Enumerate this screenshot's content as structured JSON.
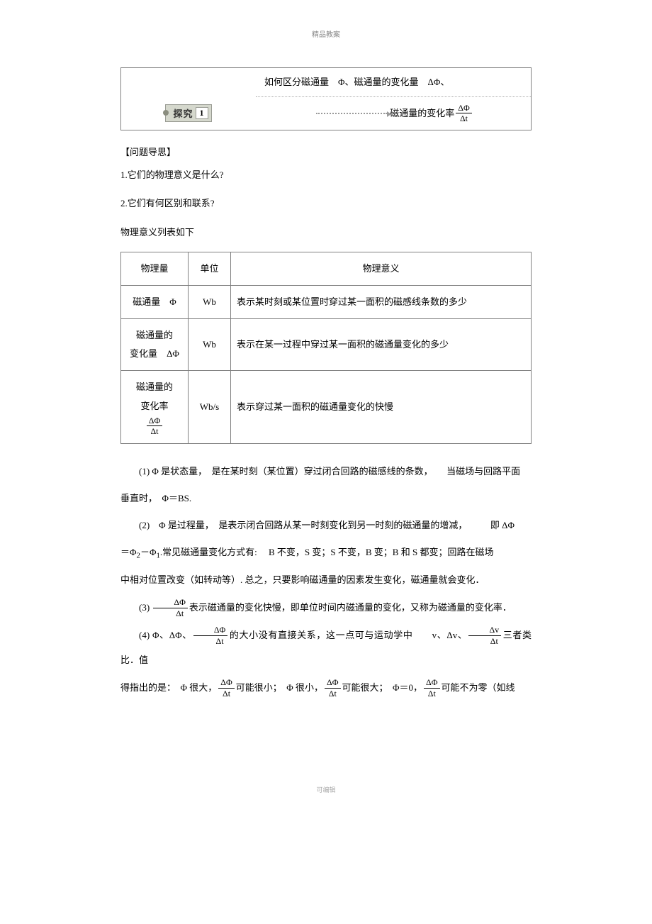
{
  "header": {
    "text": "精品教案"
  },
  "footer": {
    "text": "可编辑"
  },
  "explore": {
    "badge_label": "探究",
    "badge_num": "1",
    "top_text_prefix": "如何区分磁通量　",
    "top_text_phi": "Φ",
    "top_text_mid": "、磁通量的变化量　",
    "top_text_dphi": "ΔΦ",
    "top_text_suffix": "、",
    "bottom_label": "磁通量的变化率",
    "frac_num": "ΔΦ",
    "frac_den": "Δt"
  },
  "qa": {
    "heading": "【问题导思】",
    "q1": "1.它们的物理意义是什么?",
    "q2": "2.它们有何区别和联系?",
    "lead": "物理意义列表如下"
  },
  "table": {
    "headers": {
      "qty": "物理量",
      "unit": "单位",
      "meaning": "物理意义"
    },
    "rows": [
      {
        "qty_pre": "磁通量　",
        "qty_sym": "Φ",
        "unit": "Wb",
        "meaning": "表示某时刻或某位置时穿过某一面积的磁感线条数的多少"
      },
      {
        "qty_line1": "磁通量的",
        "qty_line2_pre": "变化量　",
        "qty_line2_sym": "ΔΦ",
        "unit": "Wb",
        "meaning": "表示在某一过程中穿过某一面积的磁通量变化的多少"
      },
      {
        "qty_line1": "磁通量的",
        "qty_line2_pre": "变化率　",
        "frac_num": "ΔΦ",
        "frac_den": "Δt",
        "unit": "Wb/s",
        "meaning": "表示穿过某一面积的磁通量变化的快慢"
      }
    ]
  },
  "body": {
    "p1_a": "(1) Φ 是状态量，　是在某时刻（某位置）穿过闭合回路的磁感线的条数，　　当磁场与回路平面",
    "p1_b": "垂直时，　Φ＝BS.",
    "p2_a": "(2)　Φ 是过程量，　是表示闭合回路从某一时刻变化到另一时刻的磁通量的增减，　　　即 ΔΦ",
    "p2_b": "＝Φ",
    "p2_sub2": "2",
    "p2_c": "－Φ",
    "p2_sub1": "1",
    "p2_d": ".常见磁通量变化方式有:　 B 不变，S 变；S 不变，B 变；B 和 S 都变；回路在磁场",
    "p2_e": "中相对位置改变（如转动等）. 总之，只要影响磁通量的因素发生变化，磁通量就会变化．",
    "p3_a": "(3) ",
    "p3_frac_num": "ΔΦ",
    "p3_frac_den": "Δt",
    "p3_b": "表示磁通量的变化快慢，即单位时间内磁通量的变化，又称为磁通量的变化率．",
    "p4_a": "(4) Φ、ΔΦ、",
    "p4_frac1_num": "ΔΦ",
    "p4_frac1_den": "Δt",
    "p4_b": "的大小没有直接关系，这一点可与运动学中　　v、Δv、",
    "p4_frac2_num": "Δv",
    "p4_frac2_den": "Δt",
    "p4_c": "三者类比．值",
    "p5_a": "得指出的是：　Φ 很大，",
    "p5_frac1_num": "ΔΦ",
    "p5_frac1_den": "Δt",
    "p5_b": "可能很小；　Φ 很小，",
    "p5_frac2_num": "ΔΦ",
    "p5_frac2_den": "Δt",
    "p5_c": "可能很大；　Φ＝0，",
    "p5_frac3_num": "ΔΦ",
    "p5_frac3_den": "Δt",
    "p5_d": "可能不为零（如线"
  },
  "colors": {
    "border": "#808080",
    "badge_bg": "#d5d8cd",
    "badge_border": "#9a9c94",
    "text": "#000000",
    "header_text": "#888888",
    "footer_text": "#aaaaaa"
  }
}
